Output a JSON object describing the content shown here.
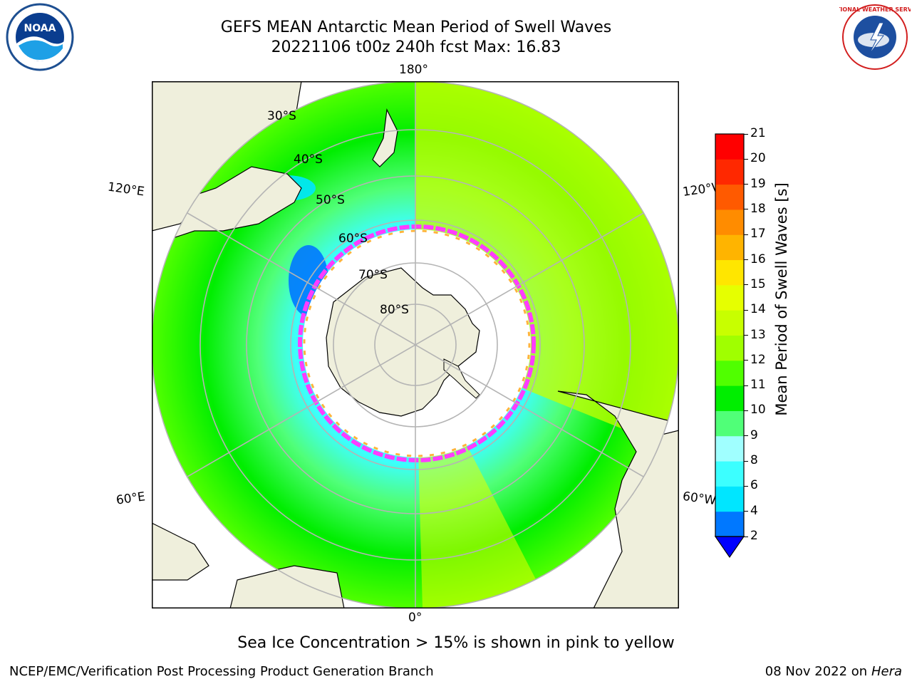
{
  "title": {
    "line1": "GEFS MEAN Antarctic Mean Period of Swell Waves",
    "line2": "20221106 t00z 240h fcst   Max: 16.83"
  },
  "map": {
    "longitude_labels": {
      "top": "180°",
      "bottom": "0°",
      "upper_left": "120°E",
      "upper_right": "120°W",
      "lower_left": "60°E",
      "lower_right": "60°W"
    },
    "latitude_labels": [
      "30°S",
      "40°S",
      "50°S",
      "60°S",
      "70°S",
      "80°S"
    ],
    "colors": {
      "land": "#efefdc",
      "ice_free_land": "#ffffff",
      "grid": "#b4b4b4",
      "ice_edge_pink": "#ff3cff",
      "ice_edge_orange": "#ffb43c"
    }
  },
  "colorbar": {
    "title": "Mean Period of Swell Waves [s]",
    "ticks": [
      "2",
      "4",
      "6",
      "8",
      "9",
      "10",
      "11",
      "12",
      "13",
      "14",
      "15",
      "16",
      "17",
      "18",
      "19",
      "20",
      "21"
    ],
    "colors": [
      "#0028ff",
      "#0078ff",
      "#00e6ff",
      "#3cffff",
      "#a0ffff",
      "#50ff78",
      "#00ee00",
      "#50ff00",
      "#a0ff00",
      "#c8ff00",
      "#e6ff00",
      "#ffe600",
      "#ffb400",
      "#ff8c00",
      "#ff5a00",
      "#ff2800",
      "#ff0000"
    ],
    "extend_color": "#0000ff"
  },
  "note": "Sea Ice Concentration > 15% is shown in pink to yellow",
  "footer": {
    "left": "NCEP/EMC/Verification Post Processing Product Generation Branch",
    "right_date": "08 Nov 2022 on",
    "right_host": "Hera"
  },
  "logos": {
    "left_text": "NOAA",
    "right_text": "NATIONAL WEATHER SERVICE"
  }
}
